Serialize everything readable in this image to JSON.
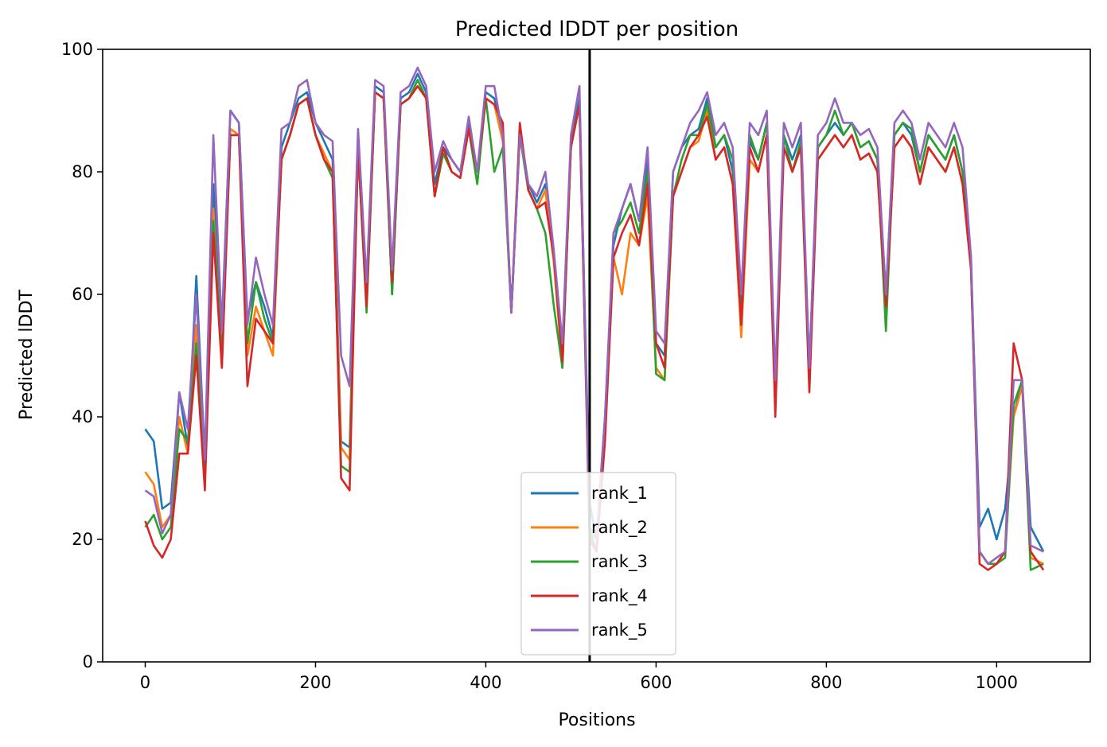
{
  "chart_data": {
    "type": "line",
    "title": "Predicted lDDT per position",
    "xlabel": "Positions",
    "ylabel": "Predicted lDDT",
    "xlim": [
      -50,
      1110
    ],
    "ylim": [
      0,
      100
    ],
    "xticks": [
      0,
      200,
      400,
      600,
      800,
      1000
    ],
    "yticks": [
      0,
      20,
      40,
      60,
      80,
      100
    ],
    "grid": false,
    "legend_position": "bottom-center",
    "vline": 522,
    "colors": {
      "rank_1": "#1f77b4",
      "rank_2": "#ff7f0e",
      "rank_3": "#2ca02c",
      "rank_4": "#d62728",
      "rank_5": "#9467bd",
      "vline": "#000000"
    },
    "x": [
      0,
      10,
      20,
      30,
      40,
      50,
      60,
      70,
      80,
      90,
      100,
      110,
      120,
      130,
      140,
      150,
      160,
      170,
      180,
      190,
      200,
      210,
      220,
      230,
      240,
      250,
      260,
      270,
      280,
      290,
      300,
      310,
      320,
      330,
      340,
      350,
      360,
      370,
      380,
      390,
      400,
      410,
      420,
      430,
      440,
      450,
      460,
      470,
      480,
      490,
      500,
      510,
      522,
      530,
      540,
      550,
      560,
      570,
      580,
      590,
      600,
      610,
      620,
      630,
      640,
      650,
      660,
      670,
      680,
      690,
      700,
      710,
      720,
      730,
      740,
      750,
      760,
      770,
      780,
      790,
      800,
      810,
      820,
      830,
      840,
      850,
      860,
      870,
      880,
      890,
      900,
      910,
      920,
      930,
      940,
      950,
      960,
      970,
      980,
      990,
      1000,
      1010,
      1020,
      1030,
      1040,
      1055
    ],
    "series": [
      {
        "name": "rank_1",
        "values": [
          38,
          36,
          25,
          26,
          44,
          35,
          63,
          33,
          78,
          55,
          90,
          88,
          56,
          62,
          58,
          53,
          84,
          88,
          92,
          93,
          88,
          85,
          82,
          36,
          35,
          86,
          60,
          94,
          93,
          60,
          92,
          93,
          96,
          93,
          78,
          84,
          82,
          80,
          88,
          80,
          93,
          92,
          86,
          57,
          87,
          78,
          75,
          78,
          66,
          50,
          85,
          92,
          26,
          20,
          40,
          68,
          74,
          78,
          72,
          82,
          52,
          50,
          80,
          84,
          86,
          87,
          92,
          84,
          86,
          80,
          57,
          85,
          82,
          88,
          42,
          86,
          82,
          86,
          48,
          84,
          86,
          88,
          86,
          88,
          84,
          85,
          82,
          60,
          86,
          88,
          86,
          80,
          86,
          84,
          82,
          86,
          80,
          65,
          22,
          25,
          20,
          25,
          40,
          46,
          22,
          18
        ]
      },
      {
        "name": "rank_2",
        "values": [
          31,
          29,
          22,
          24,
          40,
          34,
          55,
          30,
          74,
          48,
          87,
          86,
          50,
          58,
          54,
          50,
          82,
          86,
          91,
          92,
          86,
          83,
          80,
          35,
          33,
          84,
          58,
          93,
          92,
          62,
          91,
          92,
          95,
          92,
          76,
          83,
          80,
          79,
          87,
          80,
          92,
          91,
          85,
          57,
          86,
          77,
          74,
          77,
          65,
          48,
          84,
          91,
          21,
          18,
          38,
          66,
          60,
          70,
          68,
          76,
          48,
          46,
          76,
          80,
          84,
          85,
          90,
          82,
          84,
          78,
          53,
          82,
          80,
          86,
          45,
          84,
          80,
          84,
          46,
          82,
          84,
          86,
          84,
          86,
          82,
          83,
          80,
          58,
          84,
          86,
          84,
          78,
          84,
          82,
          80,
          84,
          78,
          64,
          18,
          16,
          16,
          18,
          40,
          45,
          17,
          16
        ]
      },
      {
        "name": "rank_3",
        "values": [
          22,
          24,
          20,
          22,
          38,
          36,
          52,
          30,
          72,
          50,
          86,
          86,
          52,
          62,
          56,
          52,
          82,
          86,
          91,
          92,
          86,
          82,
          79,
          32,
          31,
          84,
          57,
          93,
          92,
          60,
          91,
          92,
          95,
          92,
          76,
          83,
          80,
          79,
          87,
          78,
          92,
          80,
          84,
          57,
          86,
          77,
          74,
          70,
          58,
          48,
          84,
          91,
          22,
          18,
          38,
          70,
          72,
          75,
          70,
          80,
          47,
          46,
          76,
          82,
          86,
          86,
          91,
          84,
          86,
          82,
          55,
          86,
          82,
          88,
          43,
          86,
          80,
          85,
          46,
          84,
          86,
          90,
          86,
          88,
          84,
          85,
          82,
          54,
          86,
          88,
          87,
          80,
          86,
          84,
          82,
          86,
          80,
          64,
          18,
          16,
          16,
          17,
          42,
          46,
          15,
          16
        ]
      },
      {
        "name": "rank_4",
        "values": [
          23,
          19,
          17,
          20,
          34,
          34,
          50,
          28,
          70,
          48,
          86,
          86,
          45,
          56,
          54,
          52,
          82,
          86,
          91,
          92,
          86,
          82,
          80,
          30,
          28,
          84,
          58,
          93,
          92,
          62,
          91,
          92,
          94,
          92,
          76,
          84,
          80,
          79,
          87,
          80,
          92,
          91,
          88,
          57,
          88,
          77,
          74,
          75,
          66,
          49,
          84,
          91,
          20,
          18,
          36,
          66,
          70,
          73,
          68,
          78,
          52,
          48,
          76,
          80,
          84,
          86,
          89,
          82,
          84,
          78,
          55,
          84,
          80,
          86,
          40,
          84,
          80,
          84,
          44,
          82,
          84,
          86,
          84,
          86,
          82,
          83,
          80,
          58,
          84,
          86,
          84,
          78,
          84,
          82,
          80,
          84,
          78,
          64,
          16,
          15,
          16,
          18,
          52,
          46,
          18,
          15
        ]
      },
      {
        "name": "rank_5",
        "values": [
          28,
          27,
          21,
          24,
          44,
          38,
          60,
          33,
          86,
          54,
          90,
          88,
          55,
          66,
          60,
          55,
          87,
          88,
          94,
          95,
          88,
          86,
          85,
          50,
          45,
          87,
          62,
          95,
          94,
          64,
          93,
          94,
          97,
          94,
          80,
          85,
          82,
          80,
          89,
          80,
          94,
          94,
          86,
          57,
          86,
          78,
          76,
          80,
          67,
          52,
          86,
          94,
          22,
          20,
          40,
          70,
          74,
          78,
          72,
          84,
          54,
          52,
          80,
          84,
          88,
          90,
          93,
          86,
          88,
          84,
          60,
          88,
          86,
          90,
          46,
          88,
          84,
          88,
          48,
          86,
          88,
          92,
          88,
          88,
          86,
          87,
          84,
          60,
          88,
          90,
          88,
          82,
          88,
          86,
          84,
          88,
          84,
          66,
          18,
          16,
          17,
          18,
          46,
          46,
          19,
          18
        ]
      }
    ]
  }
}
